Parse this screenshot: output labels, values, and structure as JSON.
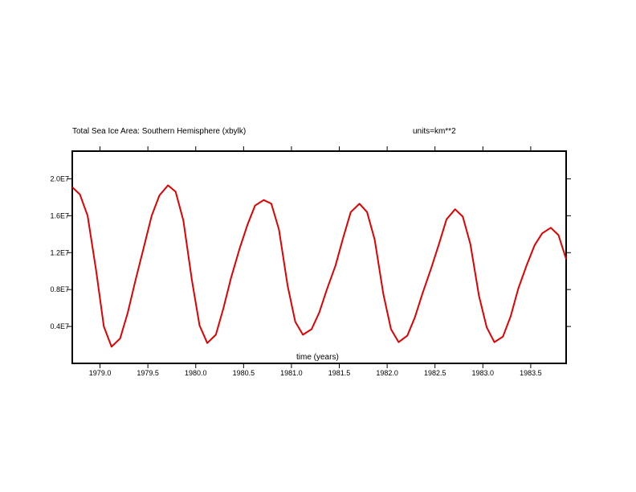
{
  "chart_data": {
    "type": "line",
    "title": "Total Sea Ice Area: Southern Hemisphere (xbylk)",
    "units_label": "units=km**2",
    "xlabel": "time (years)",
    "ylabel": "",
    "xlim": [
      1978.71,
      1983.87
    ],
    "ylim": [
      0.0,
      23000000.0
    ],
    "x_ticks": [
      1979.0,
      1979.5,
      1980.0,
      1980.5,
      1981.0,
      1981.5,
      1982.0,
      1982.5,
      1983.0,
      1983.5
    ],
    "x_tick_labels": [
      "1979.0",
      "1979.5",
      "1980.0",
      "1980.5",
      "1981.0",
      "1981.5",
      "1982.0",
      "1982.5",
      "1983.0",
      "1983.5"
    ],
    "y_ticks": [
      4000000,
      8000000,
      12000000,
      16000000,
      20000000
    ],
    "y_tick_labels": [
      "0.4E7",
      "0.8E7",
      "1.2E7",
      "1.6E7",
      "2.0E7"
    ],
    "grid": false,
    "series": [
      {
        "color": "#e00000",
        "x": [
          1978.71,
          1978.79,
          1978.87,
          1978.96,
          1979.04,
          1979.12,
          1979.21,
          1979.29,
          1979.37,
          1979.46,
          1979.54,
          1979.62,
          1979.71,
          1979.79,
          1979.87,
          1979.96,
          1980.04,
          1980.12,
          1980.21,
          1980.29,
          1980.37,
          1980.46,
          1980.54,
          1980.62,
          1980.71,
          1980.79,
          1980.87,
          1980.96,
          1981.04,
          1981.12,
          1981.21,
          1981.29,
          1981.37,
          1981.46,
          1981.54,
          1981.62,
          1981.71,
          1981.79,
          1981.87,
          1981.96,
          1982.04,
          1982.12,
          1982.21,
          1982.29,
          1982.37,
          1982.46,
          1982.54,
          1982.62,
          1982.71,
          1982.79,
          1982.87,
          1982.96,
          1983.04,
          1983.12,
          1983.21,
          1983.29,
          1983.37,
          1983.46,
          1983.54,
          1983.62,
          1983.71,
          1983.79,
          1983.87
        ],
        "y": [
          19100000,
          18300000,
          16000000,
          10000000,
          4000000,
          1800000,
          2700000,
          5500000,
          9000000,
          12700000,
          16000000,
          18200000,
          19300000,
          18600000,
          15500000,
          9000000,
          4100000,
          2200000,
          3100000,
          6000000,
          9300000,
          12500000,
          15000000,
          17100000,
          17700000,
          17300000,
          14500000,
          8400000,
          4500000,
          3100000,
          3700000,
          5500000,
          8000000,
          10600000,
          13600000,
          16400000,
          17300000,
          16400000,
          13400000,
          7500000,
          3700000,
          2300000,
          3000000,
          5000000,
          7600000,
          10300000,
          12900000,
          15600000,
          16700000,
          15900000,
          12900000,
          7300000,
          3900000,
          2300000,
          2900000,
          5100000,
          8100000,
          10700000,
          12800000,
          14100000,
          14700000,
          13900000,
          11300000
        ]
      }
    ]
  }
}
